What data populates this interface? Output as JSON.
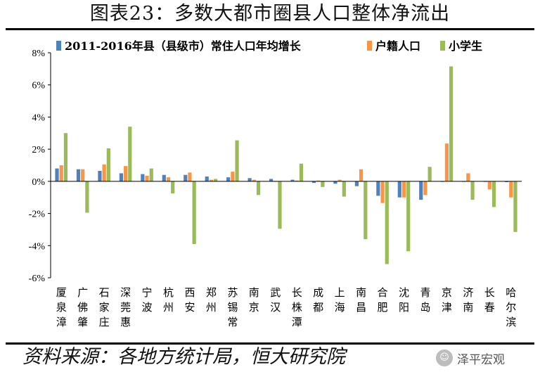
{
  "title": "图表23：多数大都市圈县人口整体净流出",
  "source": "资料来源：各地方统计局，恒大研究院",
  "watermark": {
    "text": "泽平宏观",
    "icon": "wechat-icon"
  },
  "colors": {
    "series1": "#4f81bd",
    "series2": "#f79646",
    "series3": "#9bbb59"
  },
  "chart_data": {
    "type": "bar",
    "categories": [
      "厦泉漳",
      "广佛肇",
      "石家庄",
      "深莞惠",
      "宁波",
      "杭州",
      "西安",
      "郑州",
      "苏锡常",
      "南京",
      "武汉",
      "长株潭",
      "成都",
      "上海",
      "南昌",
      "合肥",
      "沈阳",
      "青岛",
      "京津",
      "济南",
      "长春",
      "哈尔滨"
    ],
    "ylim": [
      -6,
      8
    ],
    "yticks": [
      8,
      6,
      4,
      2,
      0,
      -2,
      -4,
      -6
    ],
    "ytick_labels": [
      "8%",
      "6%",
      "4%",
      "2%",
      "0%",
      "-2%",
      "-4%",
      "-6%"
    ],
    "legend_position": "top",
    "series": [
      {
        "name": "2011-2016年县（县级市）常住人口年均增长",
        "values": [
          0.8,
          0.75,
          0.65,
          0.5,
          0.45,
          0.4,
          0.4,
          0.3,
          0.25,
          0.2,
          0.15,
          0.1,
          -0.1,
          -0.15,
          -0.3,
          -0.9,
          -1.0,
          -1.15,
          0.0,
          0.0,
          0.0,
          -0.05
        ]
      },
      {
        "name": "户籍人口",
        "values": [
          1.0,
          0.75,
          1.05,
          0.95,
          0.35,
          0.25,
          0.55,
          0.1,
          0.6,
          0.1,
          0.0,
          0.05,
          0.05,
          0.1,
          0.75,
          -1.35,
          -1.0,
          -0.85,
          2.35,
          0.5,
          -0.5,
          -1.0
        ]
      },
      {
        "name": "小学生",
        "values": [
          3.0,
          -1.95,
          2.05,
          3.4,
          0.8,
          -0.75,
          -3.9,
          0.15,
          2.55,
          -0.85,
          -2.95,
          1.1,
          -0.35,
          -0.95,
          -3.6,
          -5.15,
          -4.35,
          0.9,
          7.15,
          -1.15,
          -1.6,
          -3.15
        ]
      }
    ]
  }
}
